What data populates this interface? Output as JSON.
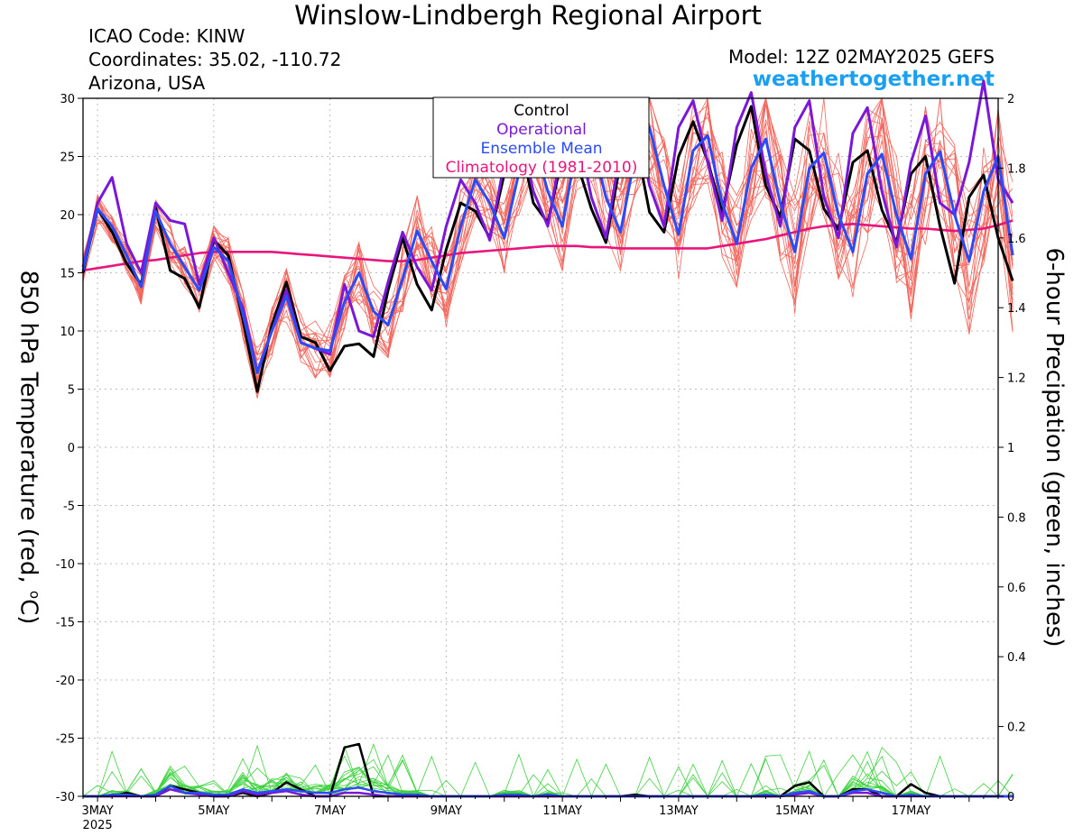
{
  "header": {
    "title": "Winslow-Lindbergh Regional Airport",
    "icao": "ICAO Code: KINW",
    "coords": "Coordinates: 35.02, -110.72",
    "region": "Arizona, USA",
    "model": "Model: 12Z 02MAY2025 GEFS",
    "site": "weathertogether.net"
  },
  "axes": {
    "left_label_main": "850 hPa Temperature (red, ",
    "left_label_deg": "o",
    "left_label_end": "C)",
    "right_label": "6-hour Precipation (green, inches)",
    "year_label": "2025"
  },
  "legend": {
    "control": "Control",
    "operational": "Operational",
    "mean": "Ensemble Mean",
    "climo": "Climatology (1981-2010)"
  },
  "colors": {
    "control": "#000000",
    "operational": "#7a18d8",
    "mean": "#2a4bf5",
    "climo": "#e8157a",
    "members_temp": "#f2665c",
    "members_precip": "#3fd23f",
    "site": "#1aa0f0"
  },
  "chart_data": {
    "type": "line",
    "title": "Winslow-Lindbergh Regional Airport",
    "x_start_day": 2.75,
    "x_end_day": 18.5,
    "x_step_days": 0.25,
    "xticks": [
      {
        "day": 3,
        "label": "3MAY"
      },
      {
        "day": 5,
        "label": "5MAY"
      },
      {
        "day": 7,
        "label": "7MAY"
      },
      {
        "day": 9,
        "label": "9MAY"
      },
      {
        "day": 11,
        "label": "11MAY"
      },
      {
        "day": 13,
        "label": "13MAY"
      },
      {
        "day": 15,
        "label": "15MAY"
      },
      {
        "day": 17,
        "label": "17MAY"
      }
    ],
    "left_axis": {
      "label": "850 hPa Temperature (red, °C)",
      "ylim": [
        -30,
        30
      ],
      "ticks": [
        30,
        25,
        20,
        15,
        10,
        5,
        0,
        -5,
        -10,
        -15,
        -20,
        -25,
        -30
      ]
    },
    "right_axis": {
      "label": "6-hour Precipation (green, inches)",
      "ylim": [
        0,
        2
      ],
      "ticks": [
        2,
        1.8,
        1.6,
        1.4,
        1.2,
        1,
        0.8,
        0.6,
        0.4,
        0.2,
        0
      ]
    },
    "temperature_series": [
      {
        "name": "Control",
        "values": [
          15.0,
          20.5,
          18.5,
          15.8,
          14.0,
          20.6,
          15.2,
          14.5,
          12.0,
          17.8,
          16.5,
          11.0,
          4.8,
          10.5,
          14.2,
          9.5,
          9.0,
          6.6,
          8.7,
          8.9,
          7.8,
          13.5,
          18.0,
          14.0,
          11.8,
          17.0,
          21.0,
          20.3,
          18.0,
          23.5,
          26.8,
          21.0,
          19.3,
          25.0,
          24.5,
          20.5,
          17.6,
          24.5,
          26.7,
          20.2,
          18.5,
          25.0,
          28.0,
          24.6,
          20.2,
          26.0,
          29.3,
          22.5,
          19.8,
          26.5,
          25.5,
          20.5,
          18.7,
          24.5,
          25.5,
          20.4,
          17.6,
          23.5,
          25.0,
          19.0,
          14.1,
          21.5,
          23.4,
          18.0,
          14.3
        ]
      },
      {
        "name": "Operational",
        "values": [
          15.5,
          21.0,
          23.2,
          17.5,
          15.0,
          21.0,
          19.5,
          19.2,
          14.0,
          18.0,
          15.0,
          12.0,
          6.5,
          10.0,
          13.5,
          9.0,
          8.5,
          8.0,
          14.0,
          10.0,
          9.5,
          14.2,
          18.5,
          15.5,
          13.5,
          19.0,
          23.0,
          21.0,
          17.8,
          24.5,
          27.5,
          22.0,
          19.0,
          26.0,
          27.5,
          21.5,
          18.0,
          25.5,
          28.5,
          22.5,
          19.0,
          27.5,
          29.8,
          24.5,
          19.5,
          27.5,
          30.5,
          23.5,
          19.0,
          27.5,
          29.8,
          21.5,
          18.0,
          27.0,
          29.2,
          22.0,
          17.2,
          24.5,
          28.5,
          21.0,
          20.0,
          24.5,
          31.5,
          23.0,
          21.0
        ]
      },
      {
        "name": "Ensemble Mean",
        "values": [
          15.2,
          20.5,
          19.0,
          16.5,
          13.8,
          20.3,
          17.5,
          15.5,
          13.5,
          17.2,
          16.0,
          11.5,
          6.4,
          10.0,
          13.0,
          9.0,
          8.5,
          8.3,
          12.5,
          15.0,
          11.7,
          10.5,
          14.5,
          18.6,
          16.0,
          13.6,
          19.0,
          23.0,
          21.0,
          18.0,
          23.6,
          26.5,
          22.0,
          19.0,
          26.0,
          26.5,
          21.5,
          18.5,
          25.0,
          27.5,
          22.5,
          18.3,
          25.5,
          26.8,
          21.0,
          17.5,
          24.0,
          26.5,
          21.0,
          16.8,
          24.0,
          25.3,
          20.0,
          16.8,
          23.5,
          25.2,
          20.0,
          16.2,
          23.5,
          25.4,
          20.0,
          16.0,
          22.0,
          25.0,
          16.5
        ]
      },
      {
        "name": "Climatology (1981-2010)",
        "values": [
          15.2,
          15.4,
          15.6,
          15.8,
          16.0,
          16.1,
          16.3,
          16.5,
          16.7,
          16.8,
          16.8,
          16.8,
          16.8,
          16.8,
          16.7,
          16.6,
          16.5,
          16.4,
          16.3,
          16.2,
          16.1,
          16.0,
          16.0,
          16.1,
          16.3,
          16.5,
          16.7,
          16.8,
          16.9,
          17.0,
          17.1,
          17.2,
          17.3,
          17.3,
          17.3,
          17.2,
          17.2,
          17.1,
          17.1,
          17.1,
          17.1,
          17.1,
          17.1,
          17.1,
          17.3,
          17.5,
          17.7,
          17.9,
          18.2,
          18.5,
          18.8,
          19.0,
          19.1,
          19.2,
          19.1,
          19.0,
          18.9,
          18.8,
          18.8,
          18.7,
          18.6,
          18.7,
          18.8,
          19.1,
          19.5
        ]
      }
    ],
    "precip_series": [
      {
        "name": "Control",
        "values": [
          0,
          0,
          0.0,
          0.01,
          0,
          0,
          0.03,
          0.02,
          0.01,
          0,
          0,
          0.01,
          0,
          0.01,
          0.04,
          0.02,
          0,
          0,
          0.14,
          0.15,
          0,
          0,
          0,
          0,
          0,
          0,
          0,
          0,
          0,
          0,
          0,
          0,
          0,
          0,
          0,
          0,
          0,
          0,
          0.005,
          0,
          0,
          0,
          0,
          0,
          0,
          0,
          0,
          0,
          0,
          0.03,
          0.04,
          0,
          0,
          0.02,
          0.02,
          0,
          0,
          0.035,
          0.01,
          0,
          0,
          0,
          0,
          0,
          0
        ]
      },
      {
        "name": "Ensemble Mean",
        "values": [
          0,
          0,
          0.005,
          0.005,
          0,
          0.005,
          0.03,
          0.01,
          0.01,
          0.005,
          0.005,
          0.02,
          0.01,
          0.015,
          0.02,
          0.015,
          0.01,
          0.01,
          0.02,
          0.025,
          0.015,
          0.01,
          0.005,
          0.005,
          0,
          0,
          0,
          0,
          0,
          0.005,
          0.005,
          0,
          0.005,
          0,
          0,
          0,
          0,
          0,
          0,
          0,
          0,
          0,
          0,
          0,
          0,
          0,
          0,
          0.005,
          0,
          0.01,
          0.015,
          0,
          0,
          0.015,
          0.02,
          0.01,
          0,
          0.005,
          0,
          0,
          0,
          0,
          0,
          0,
          0
        ]
      },
      {
        "name": "Operational",
        "values": [
          0,
          0,
          0,
          0,
          0,
          0,
          0.02,
          0.01,
          0.005,
          0,
          0,
          0.015,
          0.005,
          0.01,
          0.015,
          0.005,
          0,
          0,
          0.01,
          0.01,
          0.005,
          0,
          0,
          0,
          0,
          0,
          0,
          0,
          0,
          0,
          0,
          0,
          0,
          0,
          0,
          0,
          0,
          0,
          0,
          0,
          0,
          0,
          0,
          0,
          0,
          0,
          0,
          0,
          0,
          0.005,
          0.01,
          0,
          0,
          0.01,
          0.01,
          0,
          0,
          0,
          0,
          0,
          0,
          0,
          0,
          0,
          0
        ]
      }
    ]
  }
}
